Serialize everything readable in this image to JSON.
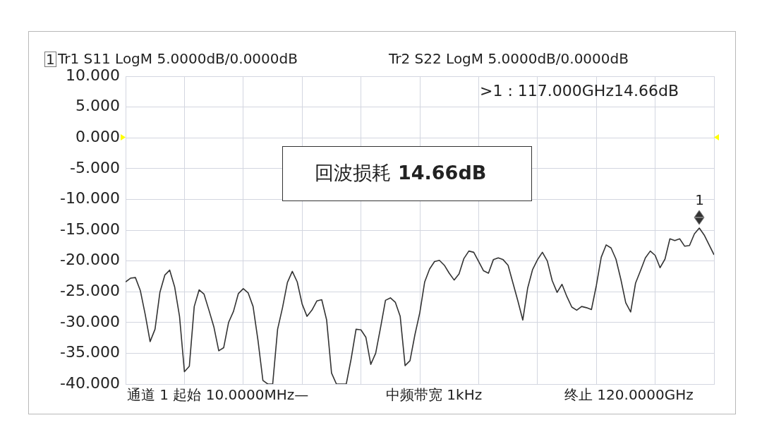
{
  "chart_data": {
    "type": "line",
    "annotations": [
      "1",
      "Tr1 S11 LogM 5.0000dB/0.0000dB",
      "Tr2 S22 LogM 5.0000dB/0.0000dB",
      ">1 : 117.000GHz14.66dB",
      "回波损耗",
      "14.66dB",
      "通道 1 起始 10.0000MHz—",
      "中频带宽 1kHz",
      "终止 120.0000GHz",
      {
        "text": "1",
        "y": -14.66
      }
    ],
    "categories": [
      null,
      null,
      null,
      null,
      null,
      null,
      null,
      null,
      null,
      null,
      null,
      null,
      null,
      null,
      null,
      null,
      null,
      null,
      null,
      null,
      null,
      null,
      null,
      null,
      null,
      null,
      null,
      null,
      null,
      null,
      null,
      null,
      null,
      null,
      null,
      null,
      null,
      null,
      null,
      null,
      null,
      null,
      null,
      null,
      null,
      null,
      null,
      null,
      null,
      null,
      null,
      null,
      null,
      null,
      null,
      null,
      null,
      null,
      null,
      null,
      null,
      null,
      null,
      null,
      null,
      null,
      null,
      null,
      null,
      null,
      null,
      null,
      null,
      null,
      null,
      null,
      null,
      null,
      null,
      null,
      null,
      null,
      null,
      null,
      null,
      null,
      null,
      null,
      null,
      null,
      null,
      null,
      null,
      null,
      null,
      null,
      null,
      null,
      null,
      null,
      null,
      null,
      null,
      null,
      null,
      null,
      null,
      null,
      null,
      null,
      null,
      null,
      null,
      null,
      null,
      null,
      null,
      null,
      null,
      null,
      null
    ],
    "series": [
      {
        "color": "#333333",
        "values": [
          -23.4,
          -22.8,
          -22.7,
          -24.8,
          -28.7,
          -33.1,
          -31.1,
          -25.1,
          -22.3,
          -21.5,
          -24.2,
          -29.0,
          -38.0,
          -37.1,
          -27.4,
          -24.7,
          -25.4,
          -28.0,
          -30.7,
          -34.6,
          -34.1,
          -30.0,
          -28.2,
          -25.3,
          -24.5,
          -25.2,
          -27.4,
          -32.9,
          -39.4,
          -40,
          -40,
          -31.1,
          -27.6,
          -23.5,
          -21.7,
          -23.4,
          -27.0,
          -29.0,
          -28.0,
          -26.5,
          -26.3,
          -29.6,
          -38.2,
          -40,
          -40,
          -40,
          -35.9,
          -31.1,
          -31.2,
          -32.4,
          -36.8,
          -35.0,
          -30.8,
          -26.4,
          -26.0,
          -26.7,
          -29.0,
          -37.0,
          -36.2,
          -32.0,
          -28.4,
          -23.4,
          -21.3,
          -20.1,
          -19.9,
          -20.7,
          -22.0,
          -23.1,
          -22.1,
          -19.6,
          -18.4,
          -18.6,
          -20.1,
          -21.6,
          -22.0,
          -19.8,
          -19.5,
          -19.8,
          -20.7,
          -23.6,
          -26.5,
          -29.6,
          -24.4,
          -21.4,
          -19.8,
          -18.6,
          -20.0,
          -23.2,
          -25.1,
          -23.8,
          -25.8,
          -27.5,
          -28.0,
          -27.4,
          -27.6,
          -27.9,
          -24.0,
          -19.4,
          -17.4,
          -17.9,
          -19.7,
          -23.0,
          -26.8,
          -28.3,
          -23.6,
          -21.6,
          -19.5,
          -18.4,
          -19.1,
          -21.1,
          -19.7,
          -16.4,
          -16.7,
          -16.4,
          -17.6,
          -17.5,
          -15.6,
          -14.66,
          -15.8,
          -17.4,
          -19.0
        ]
      }
    ],
    "ylim": [
      -40,
      10
    ],
    "yticks": [
      {
        "value": -40,
        "label": "-40.000"
      },
      {
        "value": -35,
        "label": "-35.000"
      },
      {
        "value": -30,
        "label": "-30.000"
      },
      {
        "value": -25,
        "label": "-25.000"
      },
      {
        "value": -20,
        "label": "-20.000"
      },
      {
        "value": -15,
        "label": "-15.000"
      },
      {
        "value": -10,
        "label": "-10.000"
      },
      {
        "value": -5,
        "label": "-5.000"
      },
      {
        "value": 0,
        "label": "0.000"
      },
      {
        "value": 5,
        "label": "5.000"
      },
      {
        "value": 10,
        "label": "10.000"
      }
    ],
    "grid": true,
    "tick_labels": "y",
    "legend": false,
    "marker": "none",
    "line_style": "solid"
  }
}
